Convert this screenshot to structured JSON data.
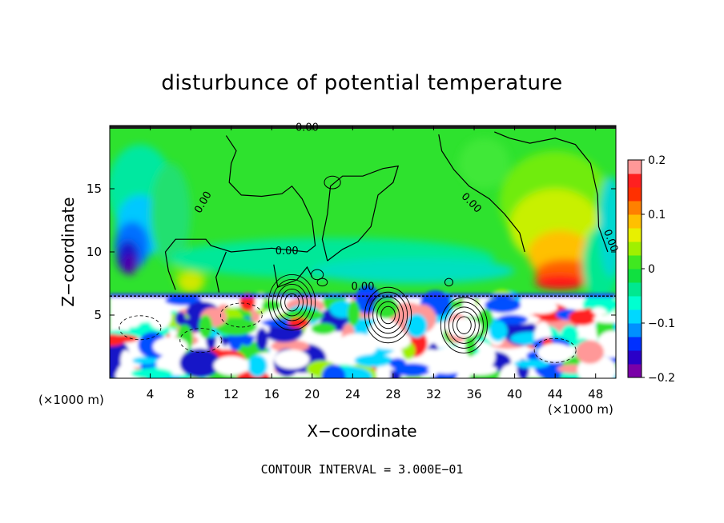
{
  "chart_data": {
    "type": "heatmap",
    "title": "disturbunce of potential temperature",
    "xlabel": "X−coordinate",
    "ylabel": "Z−coordinate",
    "x_unit_left": "(×1000 m)",
    "x_unit_right": "(×1000 m)",
    "xlim": [
      0,
      50
    ],
    "ylim": [
      0,
      20
    ],
    "x_ticks": [
      4,
      8,
      12,
      16,
      20,
      24,
      28,
      32,
      36,
      40,
      44,
      48
    ],
    "x_tick_labels": [
      "4",
      "8",
      "12",
      "16",
      "20",
      "24",
      "28",
      "32",
      "36",
      "40",
      "44",
      "48"
    ],
    "y_ticks": [
      5,
      10,
      15
    ],
    "y_tick_labels": [
      "5",
      "10",
      "15"
    ],
    "colorbar": {
      "range": [
        -0.2,
        0.2
      ],
      "ticks": [
        0.2,
        0.1,
        0,
        -0.1,
        -0.2
      ],
      "tick_labels": [
        "0.2",
        "0.1",
        "0",
        "−0.1",
        "−0.2"
      ],
      "colors": [
        "#7a00a8",
        "#2a00c8",
        "#0030ff",
        "#0090ff",
        "#00d8ff",
        "#00ffd0",
        "#00e890",
        "#10e040",
        "#40e820",
        "#a0f000",
        "#e8f000",
        "#ffc000",
        "#ff8000",
        "#ff3000",
        "#ff2020",
        "#ff9898"
      ]
    },
    "contour_labels": [
      "0.00",
      "0.00",
      "0.00",
      "0.00",
      "0.00",
      "0.00"
    ],
    "footer": "CONTOUR INTERVAL = 3.000E−01",
    "grid": false
  }
}
